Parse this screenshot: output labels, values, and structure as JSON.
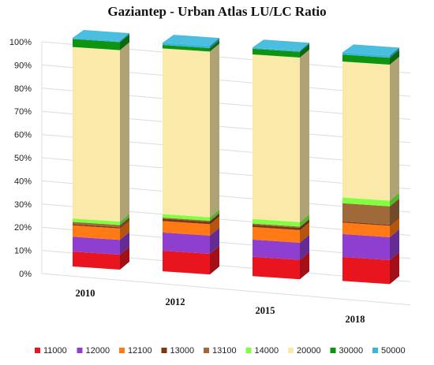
{
  "chart_data": {
    "type": "bar",
    "stacked": true,
    "percent_stacked": true,
    "three_d": true,
    "title": "Gaziantep - Urban Atlas LU/LC Ratio",
    "categories": [
      "2010",
      "2012",
      "2015",
      "2018"
    ],
    "ylim": [
      0,
      100
    ],
    "yticks": [
      "0%",
      "10%",
      "20%",
      "30%",
      "40%",
      "50%",
      "60%",
      "70%",
      "80%",
      "90%",
      "100%"
    ],
    "grid": true,
    "legend_position": "bottom",
    "series": [
      {
        "name": "11000",
        "color": "#e8151f",
        "values": [
          6.5,
          9.0,
          8.5,
          10.5
        ]
      },
      {
        "name": "12000",
        "color": "#8f3fd0",
        "values": [
          6.5,
          8.0,
          7.5,
          10.0
        ]
      },
      {
        "name": "12100",
        "color": "#ff7a14",
        "values": [
          5.0,
          5.0,
          5.5,
          5.0
        ]
      },
      {
        "name": "13000",
        "color": "#7a3a12",
        "values": [
          0.5,
          1.0,
          1.0,
          0.5
        ]
      },
      {
        "name": "13100",
        "color": "#a0693a",
        "values": [
          1.0,
          0.5,
          0.5,
          8.0
        ]
      },
      {
        "name": "14000",
        "color": "#80ff40",
        "values": [
          1.5,
          1.5,
          2.0,
          2.5
        ]
      },
      {
        "name": "20000",
        "color": "#fae9a8",
        "values": [
          75.0,
          72.5,
          72.0,
          59.5
        ]
      },
      {
        "name": "30000",
        "color": "#0f9412",
        "values": [
          3.5,
          1.5,
          2.5,
          3.0
        ]
      },
      {
        "name": "50000",
        "color": "#37b7dc",
        "values": [
          0.5,
          1.0,
          0.5,
          1.0
        ]
      }
    ]
  }
}
